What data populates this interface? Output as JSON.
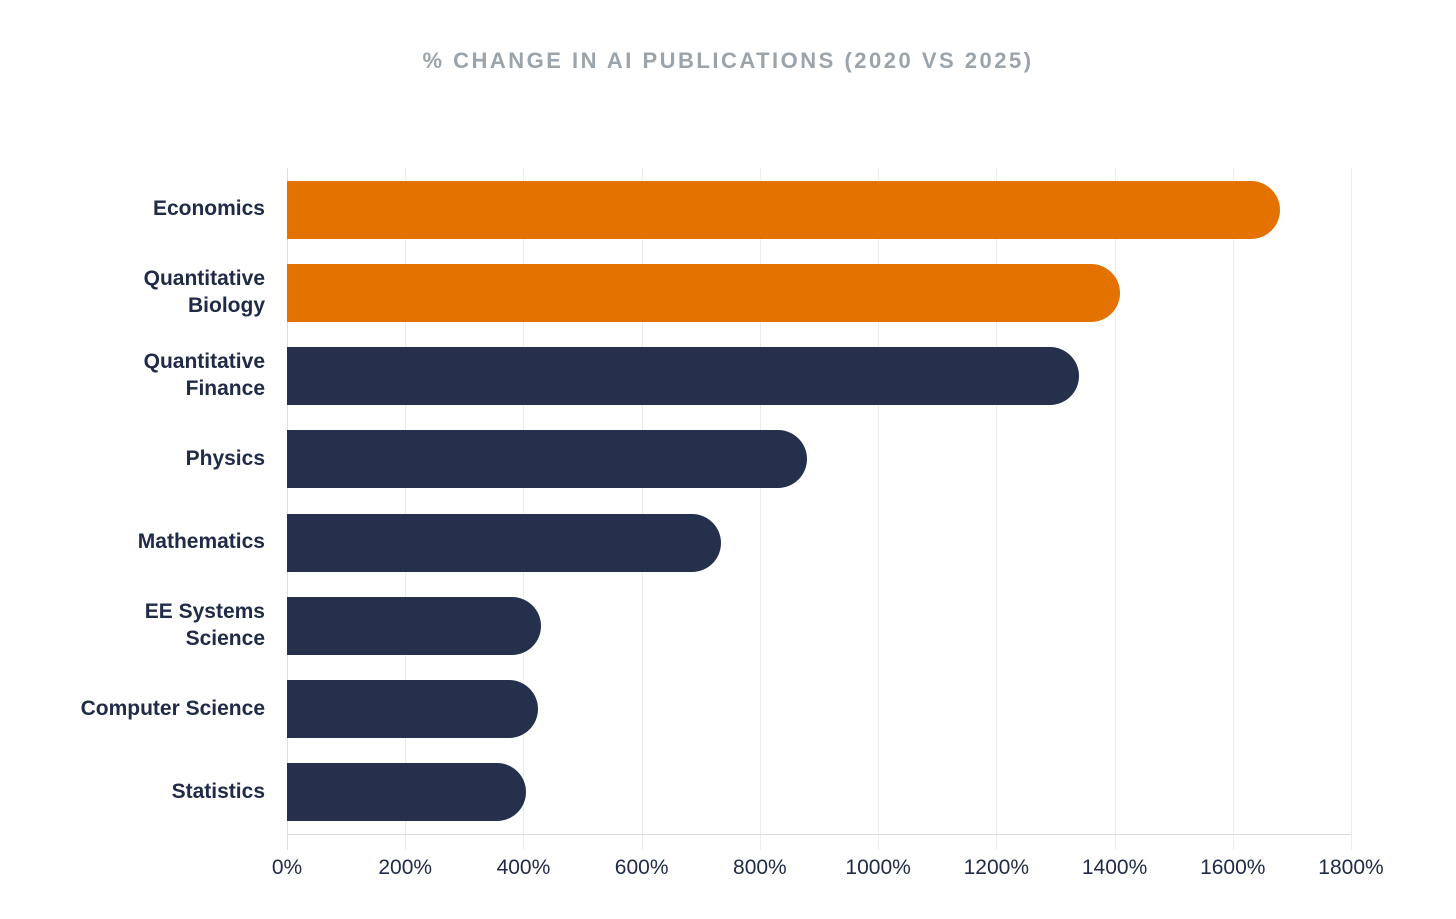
{
  "chart_data": {
    "type": "bar",
    "orientation": "horizontal",
    "title": "% CHANGE IN AI PUBLICATIONS (2020 VS 2025)",
    "categories": [
      "Economics",
      "Quantitative\nBiology",
      "Quantitative\nFinance",
      "Physics",
      "Mathematics",
      "EE Systems\nScience",
      "Computer Science",
      "Statistics"
    ],
    "values": [
      1680,
      1410,
      1340,
      880,
      735,
      430,
      425,
      405
    ],
    "bar_colors": [
      "#E37200",
      "#E37200",
      "#25304C",
      "#25304C",
      "#25304C",
      "#25304C",
      "#25304C",
      "#25304C"
    ],
    "x_tick_values": [
      0,
      200,
      400,
      600,
      800,
      1000,
      1200,
      1400,
      1600,
      1800
    ],
    "x_tick_labels": [
      "0%",
      "200%",
      "400%",
      "600%",
      "800%",
      "1000%",
      "1200%",
      "1400%",
      "1600%",
      "1800%"
    ],
    "xlim": [
      0,
      1800
    ],
    "grid": true,
    "legend": "none",
    "colors": {
      "orange": "#E37200",
      "navy": "#25304C",
      "title_text": "#9BA3AB",
      "label_text": "#202B47",
      "gridline": "#ECECEC",
      "axis_line": "#DDDDDD",
      "background": "#FFFFFF"
    }
  }
}
